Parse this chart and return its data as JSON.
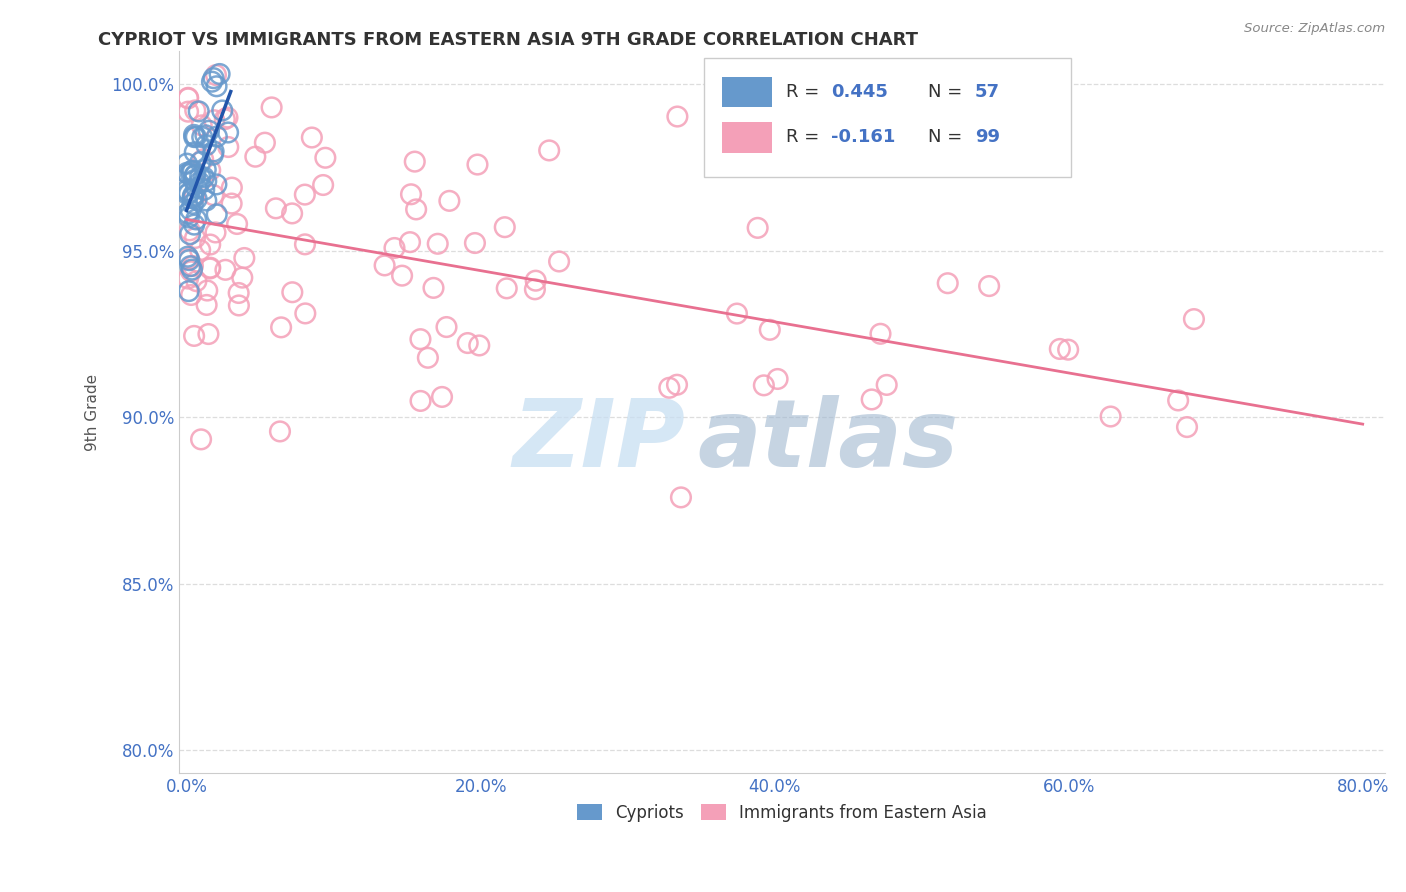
{
  "title": "CYPRIOT VS IMMIGRANTS FROM EASTERN ASIA 9TH GRADE CORRELATION CHART",
  "source_text": "Source: ZipAtlas.com",
  "ylabel": "9th Grade",
  "xaxis_vals": [
    0.0,
    0.2,
    0.4,
    0.6,
    0.8
  ],
  "yaxis_vals": [
    0.8,
    0.85,
    0.9,
    0.95,
    1.0
  ],
  "cypriot_color": "#6699cc",
  "immigrant_color": "#f4a0b8",
  "cypriot_R": 0.445,
  "cypriot_N": 57,
  "immigrant_R": -0.161,
  "immigrant_N": 99,
  "trendline_cypriot_color": "#2255aa",
  "trendline_immigrant_color": "#e87090",
  "legend_label_cypriot": "Cypriots",
  "legend_label_immigrant": "Immigrants from Eastern Asia",
  "watermark_zip": "ZIP",
  "watermark_atlas": "atlas",
  "background_color": "#ffffff",
  "r_n_color": "#4472c4",
  "title_color": "#333333",
  "tick_color": "#4472c4",
  "ylabel_color": "#555555",
  "source_color": "#888888",
  "grid_color": "#dddddd"
}
